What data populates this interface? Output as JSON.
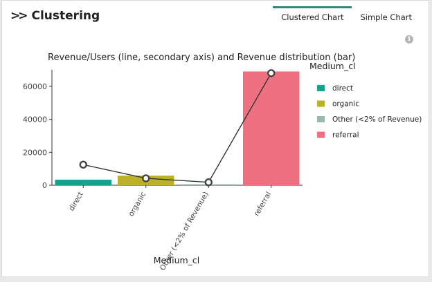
{
  "header": {
    "title": "Clustering"
  },
  "tabs": [
    {
      "label": "Clustered Chart",
      "active": true
    },
    {
      "label": "Simple Chart",
      "active": false
    }
  ],
  "icons": {
    "collapse": "double-chevron-right-icon",
    "info": "info-icon"
  },
  "chart_data": {
    "type": "bar",
    "title": "Revenue/Users (line, secondary axis) and Revenue distribution (bar)",
    "xlabel": "Medium_cl",
    "ylabel": "",
    "categories": [
      "direct",
      "organic",
      "Other (<2% of Revenue)",
      "referral"
    ],
    "ylim": [
      0,
      70000
    ],
    "yticks": [
      0,
      20000,
      40000,
      60000
    ],
    "colors": [
      "#17a28e",
      "#bdb12a",
      "#99b8b0",
      "#ef7080"
    ],
    "series": [
      {
        "name": "Revenue",
        "type": "bar",
        "values": [
          3400,
          5800,
          600,
          69000
        ]
      },
      {
        "name": "Revenue/Users",
        "type": "line",
        "values": [
          12500,
          4200,
          1800,
          68000
        ]
      }
    ],
    "legend": {
      "title": "Medium_cl",
      "position": "right",
      "items": [
        "direct",
        "organic",
        "Other (<2% of Revenue)",
        "referral"
      ]
    }
  }
}
